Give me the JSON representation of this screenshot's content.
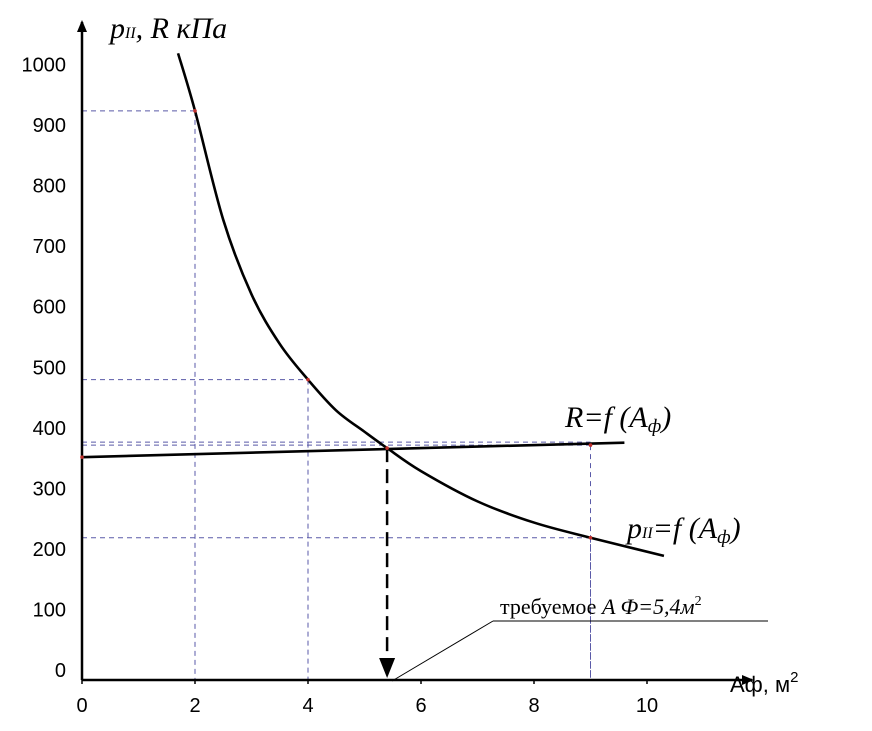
{
  "chart_data": {
    "type": "line",
    "ylabel": {
      "main": "p",
      "sub": "II",
      "rest": ", R кПа"
    },
    "xlabel": {
      "main": "Aф, м",
      "sup": "2"
    },
    "xlim": [
      0,
      11
    ],
    "ylim": [
      0,
      1050
    ],
    "x_ticks": [
      "0",
      "2",
      "4",
      "6",
      "8",
      "10"
    ],
    "y_ticks": [
      "0",
      "100",
      "200",
      "300",
      "400",
      "500",
      "600",
      "700",
      "800",
      "900",
      "1000"
    ],
    "grid": false,
    "series": [
      {
        "name": "p_II = f(Aф)",
        "label": {
          "main": "p",
          "sub": "II",
          "rest": "=f (A",
          "sub2": "ф",
          "close": ")"
        },
        "x": [
          1.7,
          2.0,
          2.5,
          3.0,
          3.5,
          4.0,
          4.5,
          5.0,
          5.4,
          6.0,
          7.0,
          8.0,
          9.0,
          10.3
        ],
        "y": [
          1035,
          940,
          760,
          637,
          555,
          496,
          445,
          410,
          383,
          345,
          295,
          260,
          235,
          205
        ]
      },
      {
        "name": "R = f(Aф)",
        "label": {
          "main": "R=f (A",
          "sub": "ф",
          "close": ")"
        },
        "x": [
          0,
          9.6
        ],
        "y": [
          368,
          392
        ]
      }
    ],
    "reference_points": [
      {
        "x": 2,
        "y": 940
      },
      {
        "x": 4,
        "y": 496
      },
      {
        "x": 5.4,
        "y": 383
      },
      {
        "x": 9,
        "y": 235
      },
      {
        "x": 9,
        "y": 388
      }
    ],
    "annotation": {
      "prefix": "требуемое ",
      "italic": "A Ф=5,4м",
      "sup": "2",
      "x": 5.4
    }
  }
}
